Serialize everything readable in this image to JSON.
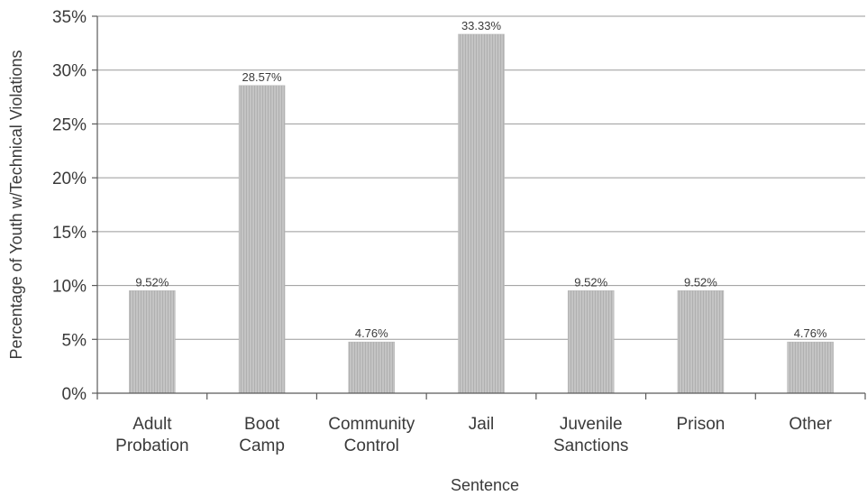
{
  "chart_data": {
    "type": "bar",
    "title": "",
    "xlabel": "Sentence",
    "ylabel": "Percentage of Youth w/Technical Violations",
    "categories": [
      [
        "Adult",
        "Probation"
      ],
      [
        "Boot",
        "Camp"
      ],
      [
        "Community",
        "Control"
      ],
      [
        "Jail"
      ],
      [
        "Juvenile",
        "Sanctions"
      ],
      [
        "Prison"
      ],
      [
        "Other"
      ]
    ],
    "values": [
      9.52,
      28.57,
      4.76,
      33.33,
      9.52,
      9.52,
      4.76
    ],
    "value_labels": [
      "9.52%",
      "28.57%",
      "4.76%",
      "33.33%",
      "9.52%",
      "9.52%",
      "4.76%"
    ],
    "ylim": [
      0,
      35
    ],
    "yticks": [
      0,
      5,
      10,
      15,
      20,
      25,
      30,
      35
    ],
    "ytick_labels": [
      "0%",
      "5%",
      "10%",
      "15%",
      "20%",
      "25%",
      "30%",
      "35%"
    ],
    "grid": true,
    "legend": "none",
    "bar_color": "#bdbdbd"
  }
}
